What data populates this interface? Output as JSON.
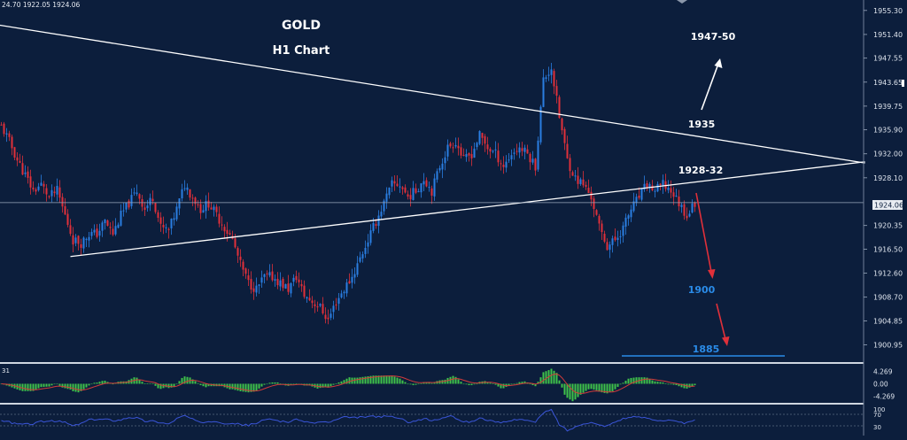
{
  "window": {
    "ohlc_readout": "24.70 1922.05 1924.06",
    "title_line1": "GOLD",
    "title_line2": "H1 Chart"
  },
  "colors": {
    "background": "#0c1e3c",
    "bull_candle": "#2a7de1",
    "bear_candle": "#e0303a",
    "trendline": "#ffffff",
    "target_label": "#2a8be8",
    "hist_green": "#3fc24a",
    "hist_signal": "#d23b3b",
    "rsi_line": "#3a55d8"
  },
  "chart_data": [
    {
      "type": "candlestick",
      "symbol": "GOLD",
      "timeframe": "H1",
      "ylim": [
        1898,
        1957
      ],
      "y_ticks": [
        "1955.30",
        "1951.40",
        "1947.55",
        "1943.65",
        "1939.75",
        "1935.90",
        "1932.00",
        "1928.10",
        "1924.06",
        "1920.35",
        "1916.50",
        "1912.60",
        "1908.70",
        "1904.85",
        "1900.95"
      ],
      "current_price": 1924.06,
      "close_path": [
        [
          0,
          1936.5
        ],
        [
          3,
          1934
        ],
        [
          6,
          1931
        ],
        [
          9,
          1928.5
        ],
        [
          12,
          1926
        ],
        [
          15,
          1927
        ],
        [
          18,
          1925
        ],
        [
          21,
          1926
        ],
        [
          24,
          1922
        ],
        [
          27,
          1918
        ],
        [
          30,
          1917.5
        ],
        [
          33,
          1919
        ],
        [
          36,
          1919
        ],
        [
          39,
          1921
        ],
        [
          42,
          1919
        ],
        [
          45,
          1922
        ],
        [
          48,
          1924
        ],
        [
          51,
          1926
        ],
        [
          54,
          1923
        ],
        [
          57,
          1925
        ],
        [
          60,
          1920
        ],
        [
          63,
          1919.5
        ],
        [
          66,
          1923
        ],
        [
          69,
          1927
        ],
        [
          72,
          1925
        ],
        [
          75,
          1923
        ],
        [
          78,
          1924
        ],
        [
          81,
          1922
        ],
        [
          84,
          1920
        ],
        [
          87,
          1918
        ],
        [
          90,
          1914
        ],
        [
          93,
          1911
        ],
        [
          96,
          1910
        ],
        [
          99,
          1912
        ],
        [
          102,
          1912
        ],
        [
          105,
          1911
        ],
        [
          108,
          1910
        ],
        [
          111,
          1912
        ],
        [
          114,
          1909
        ],
        [
          117,
          1908
        ],
        [
          120,
          1907
        ],
        [
          123,
          1905
        ],
        [
          126,
          1908
        ],
        [
          129,
          1910
        ],
        [
          132,
          1912
        ],
        [
          135,
          1915
        ],
        [
          138,
          1918
        ],
        [
          141,
          1921
        ],
        [
          144,
          1924
        ],
        [
          147,
          1927
        ],
        [
          150,
          1927
        ],
        [
          153,
          1925
        ],
        [
          156,
          1926
        ],
        [
          159,
          1928
        ],
        [
          162,
          1926
        ],
        [
          165,
          1930
        ],
        [
          168,
          1933
        ],
        [
          171,
          1934
        ],
        [
          174,
          1931
        ],
        [
          177,
          1932
        ],
        [
          180,
          1935
        ],
        [
          183,
          1933
        ],
        [
          186,
          1932
        ],
        [
          189,
          1930
        ],
        [
          192,
          1932
        ],
        [
          195,
          1933
        ],
        [
          198,
          1932
        ],
        [
          201,
          1930
        ],
        [
          204,
          1944
        ],
        [
          207,
          1946
        ],
        [
          210,
          1938
        ],
        [
          213,
          1931
        ],
        [
          216,
          1928
        ],
        [
          219,
          1927
        ],
        [
          222,
          1925
        ],
        [
          225,
          1920
        ],
        [
          228,
          1917
        ],
        [
          231,
          1918
        ],
        [
          234,
          1920
        ],
        [
          237,
          1923
        ],
        [
          240,
          1925
        ],
        [
          243,
          1927
        ],
        [
          246,
          1926
        ],
        [
          249,
          1927
        ],
        [
          252,
          1926
        ],
        [
          255,
          1924
        ],
        [
          258,
          1922
        ],
        [
          261,
          1924
        ]
      ],
      "trendlines": [
        {
          "from": [
            -2,
            1953
          ],
          "to": [
            325,
            1930.5
          ]
        },
        {
          "from": [
            26,
            1915.3
          ],
          "to": [
            325,
            1930.7
          ]
        }
      ],
      "annotations": [
        {
          "label": "1947-50",
          "kind": "target"
        },
        {
          "label": "1935",
          "kind": "level"
        },
        {
          "label": "1928-32",
          "kind": "level"
        },
        {
          "label": "1900",
          "kind": "target"
        },
        {
          "label": "1885",
          "kind": "target"
        }
      ]
    },
    {
      "type": "histogram",
      "name": "oscillator",
      "header_label": "31",
      "ylim": [
        -6.5,
        6.5
      ],
      "y_ticks": [
        "4.269",
        "0.00",
        "-4.269"
      ]
    },
    {
      "type": "line",
      "name": "oscillator",
      "ylim": [
        0,
        100
      ],
      "y_ticks": [
        "100",
        "70",
        "30"
      ]
    }
  ]
}
